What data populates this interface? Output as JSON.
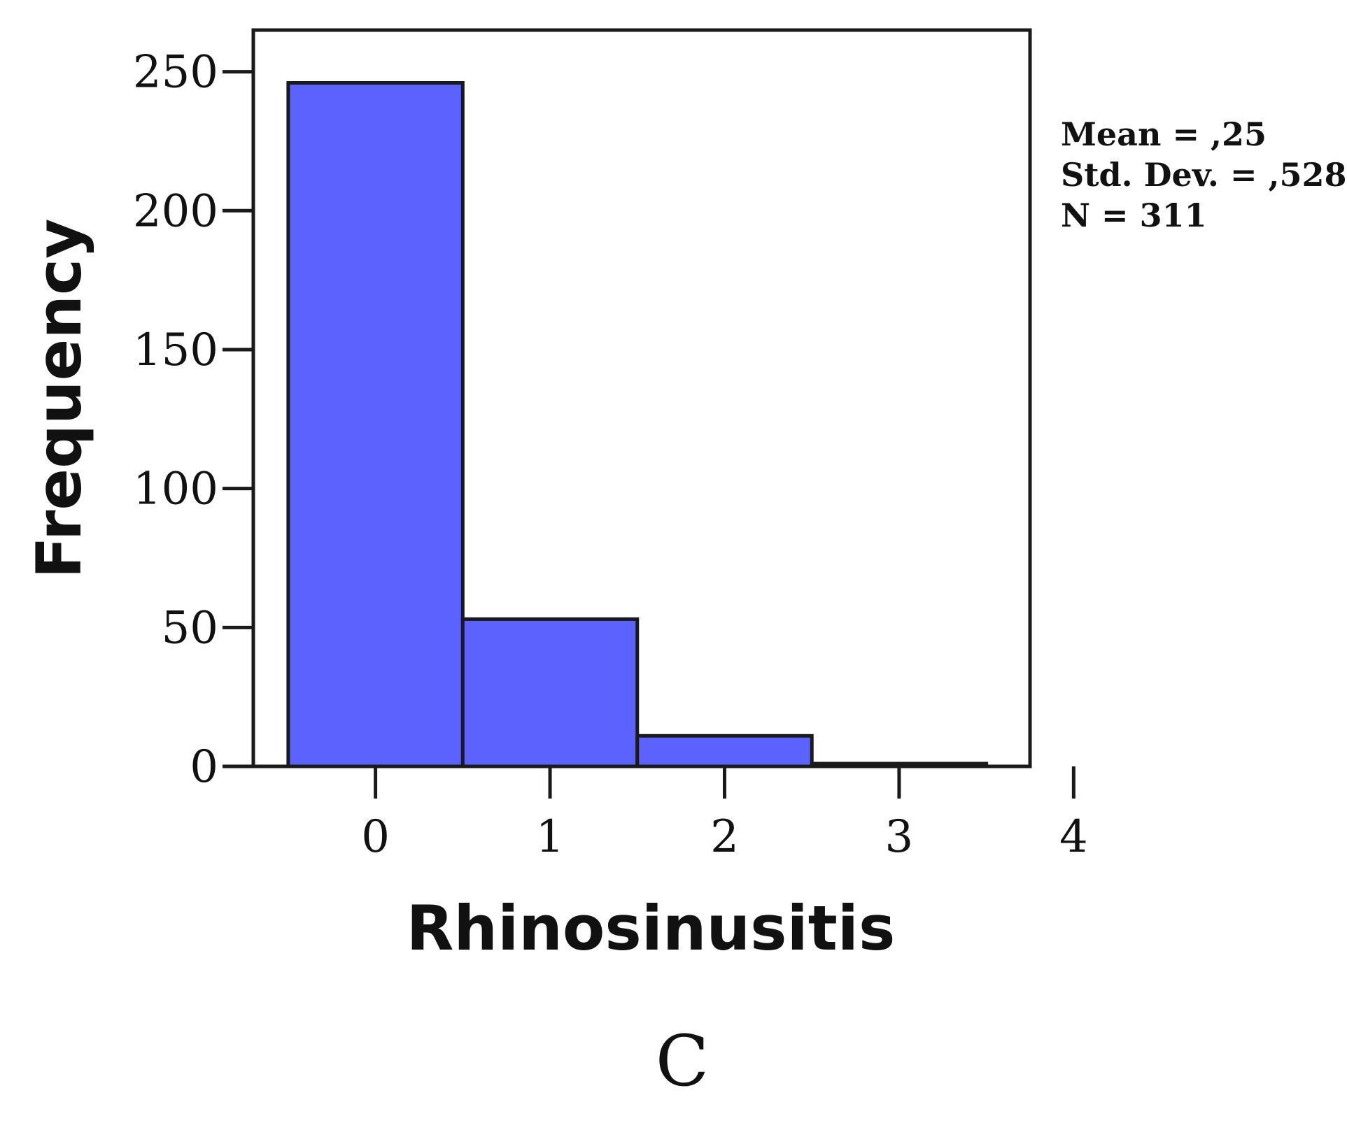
{
  "chart_data": {
    "type": "bar",
    "xlabel": "Rhinosinusitis",
    "ylabel": "Frequency",
    "categories": [
      "0",
      "1",
      "2",
      "3",
      "4"
    ],
    "values": [
      246,
      53,
      11,
      1,
      0
    ],
    "xlim": [
      -0.7,
      3.75
    ],
    "ylim": [
      0,
      265
    ],
    "yticks": [
      0,
      50,
      100,
      150,
      200,
      250
    ],
    "xticks": [
      0,
      1,
      2,
      3,
      4
    ],
    "bar_color": "#5b62fe",
    "grid": false,
    "stats": {
      "mean": "Mean = ,25",
      "std_dev": "Std. Dev. = ,528",
      "n": "N = 311"
    }
  },
  "panel_label": "C"
}
